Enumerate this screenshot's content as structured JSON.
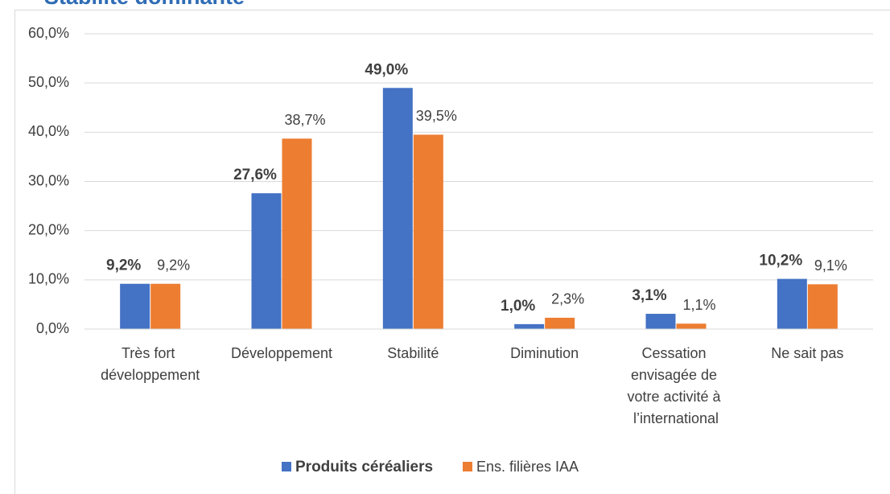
{
  "chart_data": {
    "type": "bar",
    "title": "Stabilité dominante",
    "categories": [
      "Très fort développement",
      "Développement",
      "Stabilité",
      "Diminution",
      "Cessation envisagée de votre activité à l’international",
      "Ne sait pas"
    ],
    "series": [
      {
        "name": "Produits céréaliers",
        "color": "#4472c4",
        "values": [
          9.2,
          27.6,
          49.0,
          1.0,
          3.1,
          10.2
        ],
        "value_labels": [
          "9,2%",
          "27,6%",
          "49,0%",
          "1,0%",
          "3,1%",
          "10,2%"
        ]
      },
      {
        "name": "Ens. filières IAA",
        "color": "#ed7d31",
        "values": [
          9.2,
          38.7,
          39.5,
          2.3,
          1.1,
          9.1
        ],
        "value_labels": [
          "9,2%",
          "38,7%",
          "39,5%",
          "2,3%",
          "1,1%",
          "9,1%"
        ]
      }
    ],
    "ylim": [
      0,
      60
    ],
    "yticks": [
      {
        "value": 0,
        "label": "0,0%"
      },
      {
        "value": 10,
        "label": "10,0%"
      },
      {
        "value": 20,
        "label": "20,0%"
      },
      {
        "value": 30,
        "label": "30,0%"
      },
      {
        "value": 40,
        "label": "40,0%"
      },
      {
        "value": 50,
        "label": "50,0%"
      },
      {
        "value": 60,
        "label": "60,0%"
      }
    ],
    "grid": true,
    "legend": "bottom"
  }
}
